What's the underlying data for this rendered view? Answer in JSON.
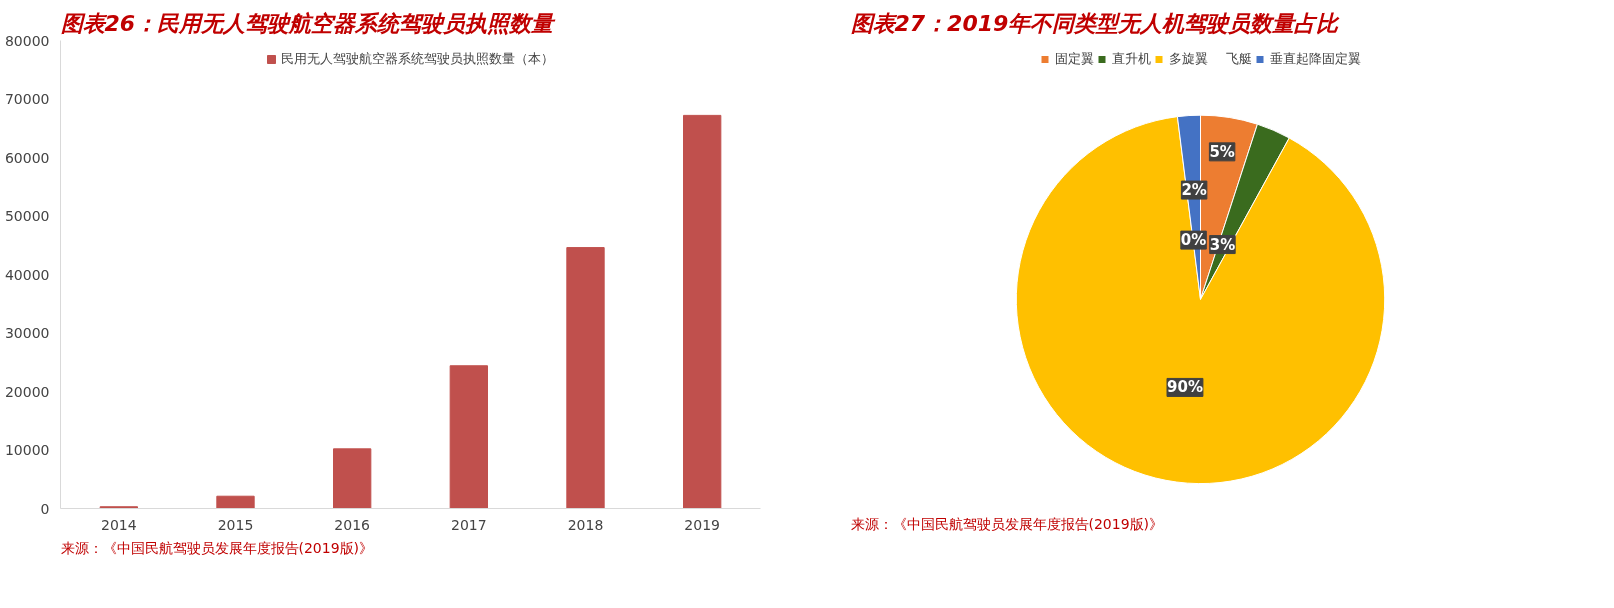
{
  "chart_data": [
    {
      "type": "bar",
      "title": "图表26：民用无人驾驶航空器系统驾驶员执照数量",
      "categories": [
        "2014",
        "2015",
        "2016",
        "2017",
        "2018",
        "2019"
      ],
      "series": [
        {
          "name": "民用无人驾驶航空器系统驾驶员执照数量（本）",
          "color": "#c0504d",
          "values": [
            300,
            2100,
            10200,
            24400,
            44600,
            67200
          ]
        }
      ],
      "ylim": [
        0,
        80000
      ],
      "yticks": [
        0,
        10000,
        20000,
        30000,
        40000,
        50000,
        60000,
        70000,
        80000
      ],
      "grid": false,
      "legend": "top",
      "annotations": [
        "来源：《中国民航驾驶员发展年度报告(2019版)》"
      ]
    },
    {
      "type": "pie",
      "title": "图表27：2019年不同类型无人机驾驶员数量占比",
      "categories": [
        "固定翼",
        "直升机",
        "多旋翼",
        "飞艇",
        "垂直起降固定翼"
      ],
      "values": [
        5,
        3,
        90,
        0,
        2
      ],
      "colors": [
        "#ed7d31",
        "#3a6b1e",
        "#ffc000",
        "#5b9bd5",
        "#4472c4"
      ],
      "value_labels": [
        "5%",
        "3%",
        "90%",
        "0%",
        "2%"
      ],
      "legend": "top",
      "annotations": [
        "来源：《中国民航驾驶员发展年度报告(2019版)》"
      ]
    }
  ]
}
